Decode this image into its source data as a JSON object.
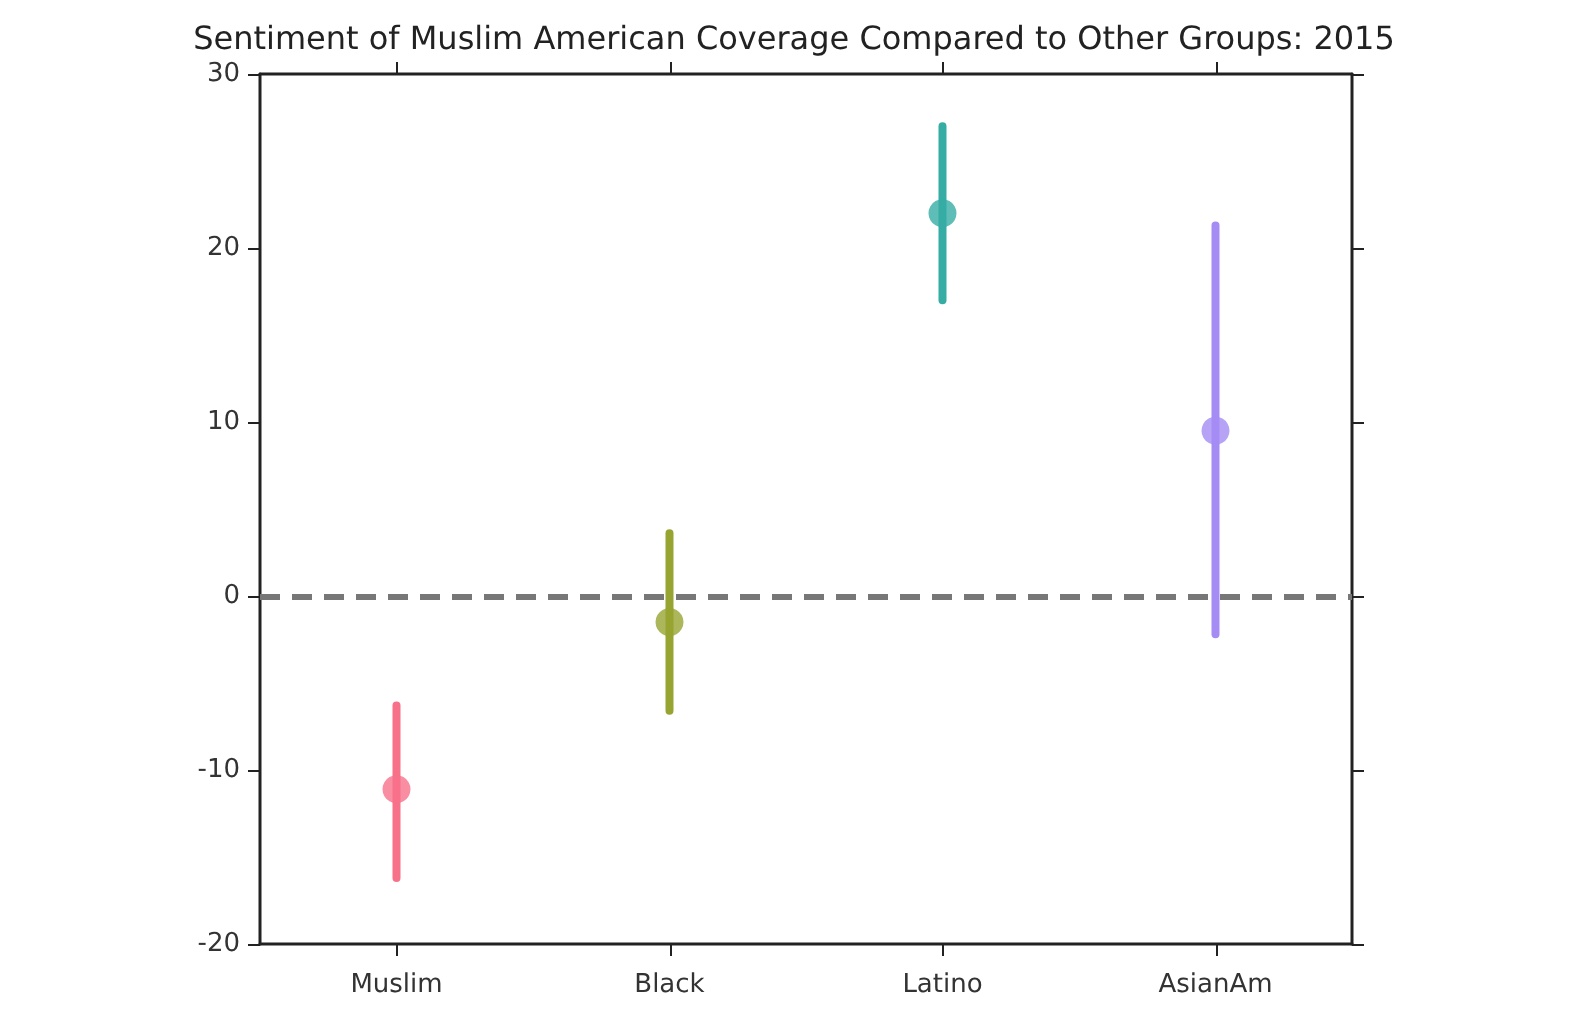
{
  "chart_data": {
    "type": "scatter",
    "title": "Sentiment of Muslim American Coverage Compared to Other Groups: 2015",
    "categories": [
      "Muslim",
      "Black",
      "Latino",
      "AsianAm"
    ],
    "values": [
      -11.1,
      -1.5,
      22.0,
      9.5
    ],
    "colors": [
      "#f77189",
      "#97a431",
      "#36ada4",
      "#a48cf4"
    ],
    "errors": [
      [
        -16.2,
        -6.3
      ],
      [
        -6.6,
        3.6
      ],
      [
        17.0,
        27.0
      ],
      [
        -2.2,
        21.3
      ]
    ],
    "ylim": [
      -20,
      30
    ],
    "yticks": [
      -20,
      -10,
      0,
      10,
      20,
      30
    ],
    "ref_lines": [
      {
        "axis": "y",
        "value": 0,
        "color": "#777777",
        "line_style": "dashed"
      }
    ],
    "marker": "circle"
  }
}
